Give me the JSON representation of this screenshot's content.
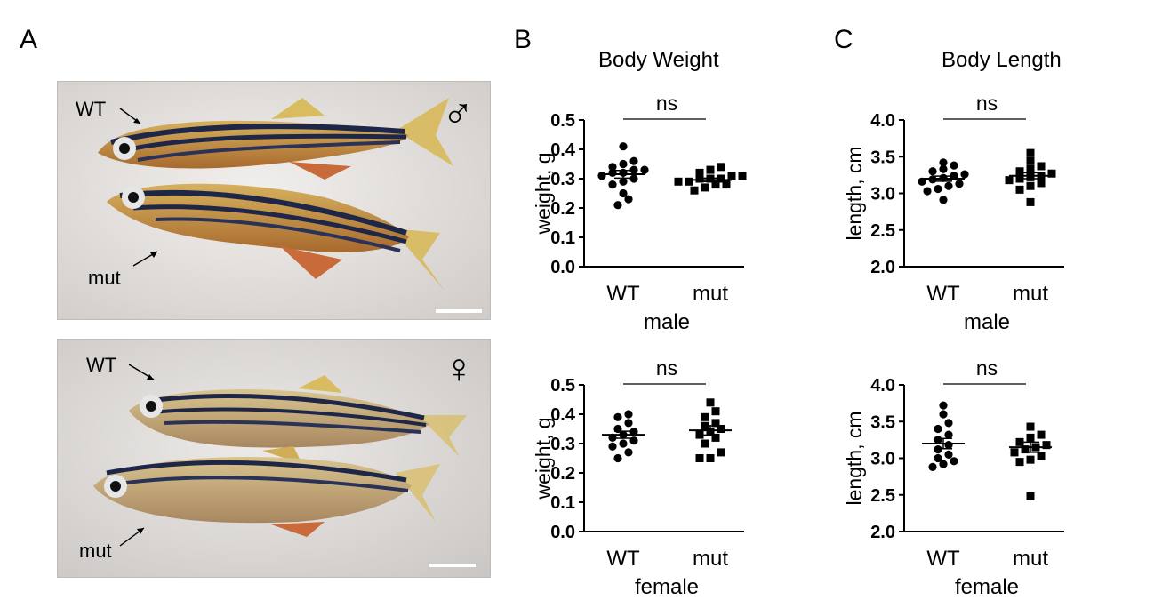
{
  "panels": {
    "a": {
      "letter": "A"
    },
    "b": {
      "letter": "B",
      "title": "Body Weight"
    },
    "c": {
      "letter": "C",
      "title": "Body Length"
    }
  },
  "photos": [
    {
      "sex_symbol": "♂",
      "labels": {
        "wt": "WT",
        "mut": "mut"
      }
    },
    {
      "sex_symbol": "♀",
      "labels": {
        "wt": "WT",
        "mut": "mut"
      }
    }
  ],
  "colors": {
    "fish_stripe": "#1f2749",
    "fish_yellow": "#d8b85a",
    "fish_belly": "#e7c488",
    "background": "#e6e3e1"
  },
  "chart_data": [
    {
      "id": "weight-male",
      "type": "scatter",
      "xlabel": "male",
      "ylabel": "weight, g",
      "categories": [
        "WT",
        "mut"
      ],
      "ylim": [
        0,
        0.5
      ],
      "yticks": [
        "0.0",
        "0.1",
        "0.2",
        "0.3",
        "0.4",
        "0.5"
      ],
      "annotation": "ns",
      "series": [
        {
          "values": [
            0.41,
            0.36,
            0.35,
            0.34,
            0.33,
            0.33,
            0.32,
            0.32,
            0.31,
            0.3,
            0.29,
            0.28,
            0.25,
            0.23,
            0.21
          ],
          "mean": 0.315,
          "sem": 0.013
        },
        {
          "values": [
            0.34,
            0.33,
            0.32,
            0.31,
            0.31,
            0.3,
            0.3,
            0.3,
            0.29,
            0.29,
            0.28,
            0.28,
            0.27,
            0.26
          ],
          "mean": 0.296,
          "sem": 0.006
        }
      ]
    },
    {
      "id": "length-male",
      "type": "scatter",
      "xlabel": "male",
      "ylabel": "length, cm",
      "categories": [
        "WT",
        "mut"
      ],
      "ylim": [
        2.0,
        4.0
      ],
      "yticks": [
        "2.0",
        "2.5",
        "3.0",
        "3.5",
        "4.0"
      ],
      "annotation": "ns",
      "series": [
        {
          "values": [
            3.42,
            3.38,
            3.33,
            3.3,
            3.26,
            3.24,
            3.21,
            3.19,
            3.16,
            3.13,
            3.1,
            3.06,
            3.03,
            2.91
          ],
          "mean": 3.2,
          "sem": 0.035
        },
        {
          "values": [
            3.55,
            3.44,
            3.37,
            3.33,
            3.3,
            3.27,
            3.24,
            3.22,
            3.2,
            3.18,
            3.14,
            3.1,
            3.05,
            2.88
          ],
          "mean": 3.24,
          "sem": 0.04
        }
      ]
    },
    {
      "id": "weight-female",
      "type": "scatter",
      "xlabel": "female",
      "ylabel": "weight, g",
      "categories": [
        "WT",
        "mut"
      ],
      "ylim": [
        0,
        0.5
      ],
      "yticks": [
        "0.0",
        "0.1",
        "0.2",
        "0.3",
        "0.4",
        "0.5"
      ],
      "annotation": "ns",
      "series": [
        {
          "values": [
            0.4,
            0.39,
            0.37,
            0.35,
            0.34,
            0.33,
            0.32,
            0.31,
            0.3,
            0.29,
            0.27,
            0.25
          ],
          "mean": 0.33,
          "sem": 0.012
        },
        {
          "values": [
            0.44,
            0.41,
            0.39,
            0.37,
            0.36,
            0.35,
            0.34,
            0.33,
            0.32,
            0.3,
            0.27,
            0.25,
            0.25
          ],
          "mean": 0.345,
          "sem": 0.016
        }
      ]
    },
    {
      "id": "length-female",
      "type": "scatter",
      "xlabel": "female",
      "ylabel": "length, cm",
      "categories": [
        "WT",
        "mut"
      ],
      "ylim": [
        2.0,
        4.0
      ],
      "yticks": [
        "2.0",
        "2.5",
        "3.0",
        "3.5",
        "4.0"
      ],
      "annotation": "ns",
      "series": [
        {
          "values": [
            3.72,
            3.6,
            3.48,
            3.4,
            3.32,
            3.25,
            3.18,
            3.12,
            3.05,
            3.0,
            2.96,
            2.92,
            2.88
          ],
          "mean": 3.2,
          "sem": 0.07
        },
        {
          "values": [
            3.43,
            3.32,
            3.28,
            3.22,
            3.18,
            3.15,
            3.12,
            3.08,
            3.03,
            2.98,
            2.95,
            2.48
          ],
          "mean": 3.15,
          "sem": 0.07
        }
      ]
    }
  ]
}
